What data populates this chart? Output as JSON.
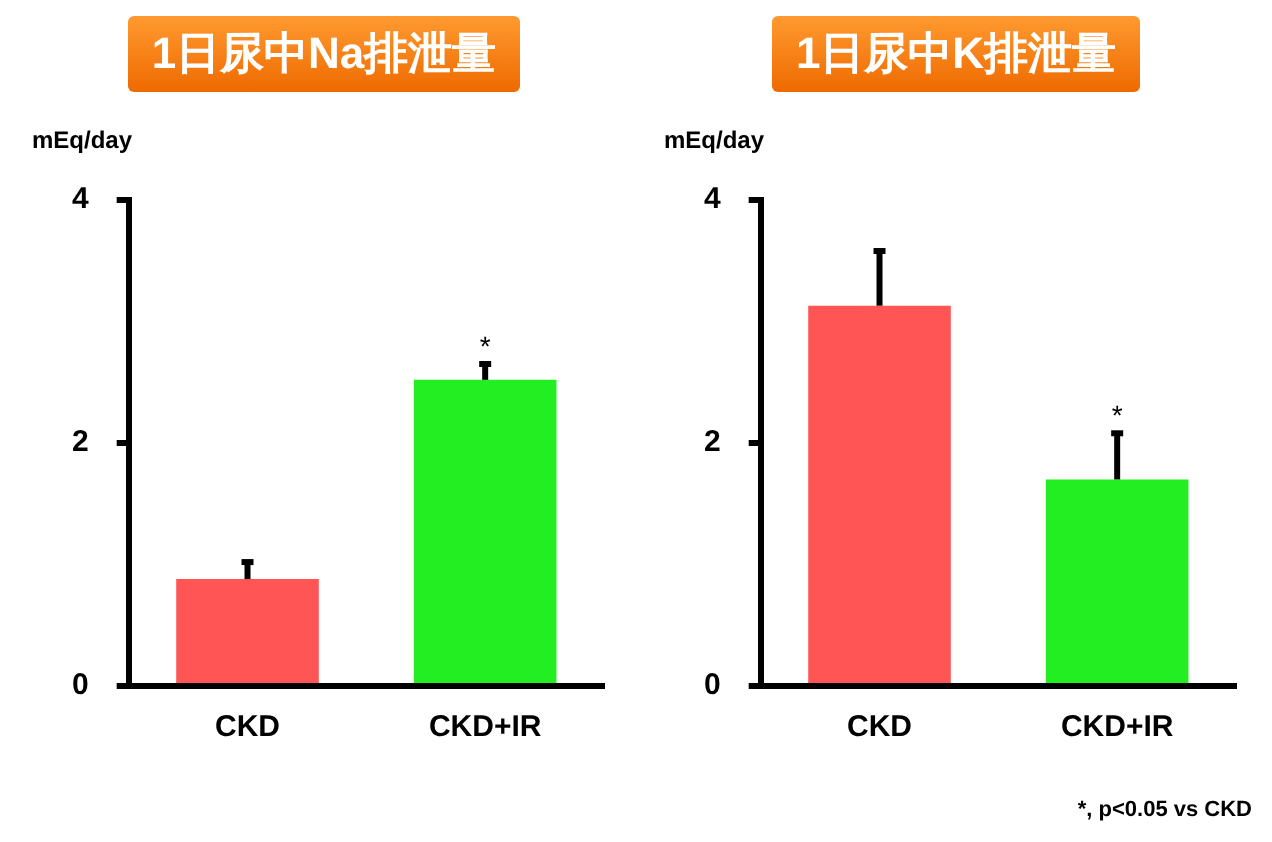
{
  "chart_data": [
    {
      "type": "bar",
      "title": "1日尿中Na排泄量",
      "ylabel": "mEq/day",
      "categories": [
        "CKD",
        "CKD+IR"
      ],
      "values": [
        0.88,
        2.52
      ],
      "colors": [
        "#ff5555",
        "#22ee22"
      ],
      "errors": [
        0.14,
        0.13
      ],
      "ylim": [
        0,
        4
      ],
      "yticks": [
        0,
        2,
        4
      ],
      "grid": false,
      "legend": false,
      "annotations": [
        "*"
      ]
    },
    {
      "type": "bar",
      "title": "1日尿中K排泄量",
      "ylabel": "mEq/day",
      "categories": [
        "CKD",
        "CKD+IR"
      ],
      "values": [
        3.13,
        1.7
      ],
      "colors": [
        "#ff5555",
        "#22ee22"
      ],
      "errors": [
        0.45,
        0.38
      ],
      "ylim": [
        0,
        4
      ],
      "yticks": [
        0,
        2,
        4
      ],
      "grid": false,
      "legend": false,
      "annotations": [
        "*",
        "*,  p<0.05 vs CKD"
      ]
    }
  ]
}
